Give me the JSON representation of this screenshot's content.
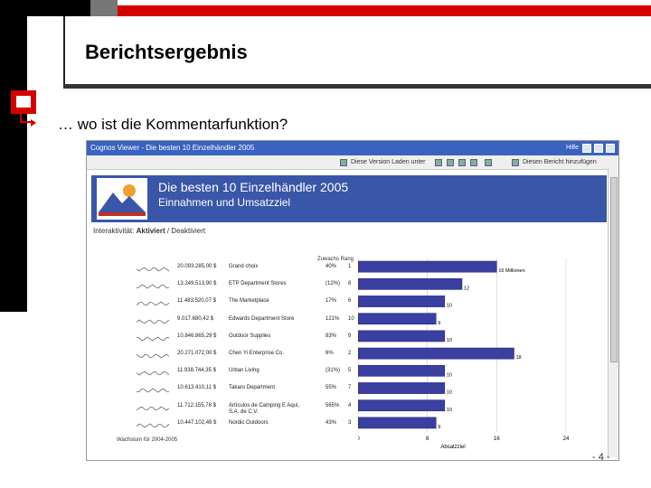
{
  "slide": {
    "title": "Berichtsergebnis",
    "subtitle": "… wo ist die Kommentarfunktion?",
    "page_number": "- 4 -"
  },
  "window": {
    "title": "Cognos Viewer - Die besten 10 Einzelhändler 2005",
    "help": "Hilfe",
    "toolbar": {
      "view_label": "Diese Version Laden unter",
      "add_label": "Diesen Bericht hinzufügen"
    }
  },
  "report": {
    "title": "Die besten 10 Einzelhändler 2005",
    "subtitle": "Einnahmen und Umsatzziel",
    "interactivity_label": "Interaktivität:",
    "interactivity_active": "Aktiviert",
    "interactivity_sep": "/ Deaktiviert",
    "header_growth_rank": "Zuwachs Rang",
    "footnote": "Wachstum für 2004-2005",
    "x_axis_label": "Absatzziel"
  },
  "rows": [
    {
      "revenue": "20.093.285,00 $",
      "name": "Grand choix",
      "growth": "40%",
      "rank": "1"
    },
    {
      "revenue": "13.249.513,90 $",
      "name": "ETP Department Stores",
      "growth": "(12%)",
      "rank": "8"
    },
    {
      "revenue": "11.483.520,07 $",
      "name": "The Marketplace",
      "growth": "17%",
      "rank": "6"
    },
    {
      "revenue": "9.017.680,42 $",
      "name": "Edwards Department Store",
      "growth": "121%",
      "rank": "10"
    },
    {
      "revenue": "10.846.865,29 $",
      "name": "Outdoor Supplies",
      "growth": "83%",
      "rank": "9"
    },
    {
      "revenue": "20.271.072,00 $",
      "name": "Chen Yi Enterprise Co.",
      "growth": "6%",
      "rank": "2"
    },
    {
      "revenue": "11.938.744,35 $",
      "name": "Urban Living",
      "growth": "(31%)",
      "rank": "5"
    },
    {
      "revenue": "10.613.410,11 $",
      "name": "Takaro Department",
      "growth": "55%",
      "rank": "7"
    },
    {
      "revenue": "11.712.155,78 $",
      "name": "Artículos de Camping E Aquí, S.A. de C.V.",
      "growth": "565%",
      "rank": "4"
    },
    {
      "revenue": "10.447.102,49 $",
      "name": "Nordic Outdoors",
      "growth": "43%",
      "rank": "3"
    }
  ],
  "chart_data": {
    "type": "bar",
    "orientation": "horizontal",
    "x": [
      0,
      8,
      16,
      24
    ],
    "values": [
      16,
      12,
      10,
      9,
      10,
      18,
      10,
      10,
      10,
      9
    ],
    "labels": [
      "16 Millionen",
      "12",
      "10",
      "9",
      "10",
      "18",
      "10",
      "10",
      "10",
      "9"
    ],
    "xlim": [
      0,
      24
    ],
    "xlabel": "Absatzziel",
    "grid": true,
    "colors": {
      "bar": "#3a3fa0",
      "bar_edge": "#1d2170"
    }
  },
  "colors": {
    "accent_red": "#d40000",
    "report_header": "#3a56a8",
    "window_title": "#3a62c0"
  }
}
